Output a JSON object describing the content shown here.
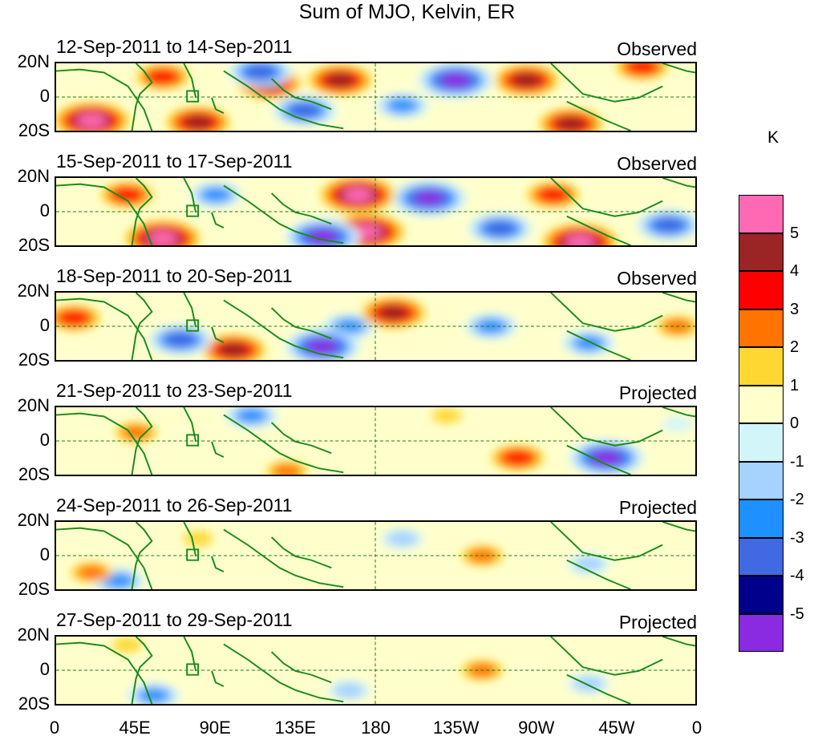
{
  "chart_data": {
    "type": "heatmap",
    "title": "Sum of MJO, Kelvin, ER",
    "unit_label": "K",
    "lat_ticks": [
      "20N",
      "0",
      "20S"
    ],
    "lon_ticks": [
      "0",
      "45E",
      "90E",
      "135E",
      "180",
      "135W",
      "90W",
      "45W",
      "0"
    ],
    "colorbar": {
      "labels": [
        "5",
        "4",
        "3",
        "2",
        "1",
        "0",
        "-1",
        "-2",
        "-3",
        "-4",
        "-5"
      ],
      "colors": [
        "#ff69b4",
        "#9b2424",
        "#ff0000",
        "#ff7300",
        "#ffd732",
        "#ffffcc",
        "#d2f5fa",
        "#a5d2ff",
        "#1e90ff",
        "#4169e1",
        "#00008b",
        "#8a2be2"
      ]
    },
    "panels": [
      {
        "date_range": "12-Sep-2011 to 14-Sep-2011",
        "kind": "Observed"
      },
      {
        "date_range": "15-Sep-2011 to 17-Sep-2011",
        "kind": "Observed"
      },
      {
        "date_range": "18-Sep-2011 to 20-Sep-2011",
        "kind": "Observed"
      },
      {
        "date_range": "21-Sep-2011 to 23-Sep-2011",
        "kind": "Projected"
      },
      {
        "date_range": "24-Sep-2011 to 26-Sep-2011",
        "kind": "Projected"
      },
      {
        "date_range": "27-Sep-2011 to 29-Sep-2011",
        "kind": "Projected"
      }
    ],
    "anomaly_features": [
      [
        {
          "lon": 20,
          "lat": -14,
          "value": 5
        },
        {
          "lon": 60,
          "lat": 12,
          "value": 3
        },
        {
          "lon": 80,
          "lat": -15,
          "value": 4
        },
        {
          "lon": 115,
          "lat": 15,
          "value": -4
        },
        {
          "lon": 120,
          "lat": 8,
          "value": 4
        },
        {
          "lon": 140,
          "lat": -8,
          "value": -4
        },
        {
          "lon": 160,
          "lat": 10,
          "value": 4
        },
        {
          "lon": 195,
          "lat": -5,
          "value": -3
        },
        {
          "lon": 225,
          "lat": 10,
          "value": -5
        },
        {
          "lon": 265,
          "lat": 10,
          "value": 4
        },
        {
          "lon": 290,
          "lat": -16,
          "value": 4
        },
        {
          "lon": 330,
          "lat": 18,
          "value": 3
        }
      ],
      [
        {
          "lon": 40,
          "lat": 10,
          "value": 3
        },
        {
          "lon": 60,
          "lat": -16,
          "value": 5
        },
        {
          "lon": 90,
          "lat": 10,
          "value": -3
        },
        {
          "lon": 150,
          "lat": -15,
          "value": -5
        },
        {
          "lon": 170,
          "lat": 10,
          "value": 5
        },
        {
          "lon": 175,
          "lat": -12,
          "value": 5
        },
        {
          "lon": 210,
          "lat": 8,
          "value": -5
        },
        {
          "lon": 250,
          "lat": -10,
          "value": -4
        },
        {
          "lon": 280,
          "lat": 10,
          "value": 3
        },
        {
          "lon": 295,
          "lat": -18,
          "value": 5
        },
        {
          "lon": 345,
          "lat": -8,
          "value": -4
        }
      ],
      [
        {
          "lon": 10,
          "lat": 5,
          "value": 3
        },
        {
          "lon": 70,
          "lat": -8,
          "value": -4
        },
        {
          "lon": 100,
          "lat": -14,
          "value": 4
        },
        {
          "lon": 150,
          "lat": -12,
          "value": -5
        },
        {
          "lon": 190,
          "lat": 8,
          "value": 4
        },
        {
          "lon": 165,
          "lat": 0,
          "value": -3
        },
        {
          "lon": 245,
          "lat": 0,
          "value": -3
        },
        {
          "lon": 300,
          "lat": -10,
          "value": -3
        },
        {
          "lon": 350,
          "lat": 0,
          "value": 2
        }
      ],
      [
        {
          "lon": 45,
          "lat": 5,
          "value": 2
        },
        {
          "lon": 110,
          "lat": 15,
          "value": -3
        },
        {
          "lon": 130,
          "lat": -18,
          "value": 2
        },
        {
          "lon": 220,
          "lat": 15,
          "value": 1
        },
        {
          "lon": 260,
          "lat": -10,
          "value": 3
        },
        {
          "lon": 310,
          "lat": -10,
          "value": -5
        },
        {
          "lon": 350,
          "lat": 10,
          "value": -1
        }
      ],
      [
        {
          "lon": 20,
          "lat": -10,
          "value": 2
        },
        {
          "lon": 35,
          "lat": -15,
          "value": -3
        },
        {
          "lon": 240,
          "lat": 0,
          "value": 2
        },
        {
          "lon": 195,
          "lat": 10,
          "value": -2
        },
        {
          "lon": 300,
          "lat": -5,
          "value": -2
        },
        {
          "lon": 80,
          "lat": 10,
          "value": 1
        }
      ],
      [
        {
          "lon": 40,
          "lat": 15,
          "value": 1
        },
        {
          "lon": 55,
          "lat": -15,
          "value": -3
        },
        {
          "lon": 165,
          "lat": -12,
          "value": -2
        },
        {
          "lon": 240,
          "lat": 0,
          "value": 2
        },
        {
          "lon": 300,
          "lat": -8,
          "value": -2
        }
      ]
    ]
  }
}
